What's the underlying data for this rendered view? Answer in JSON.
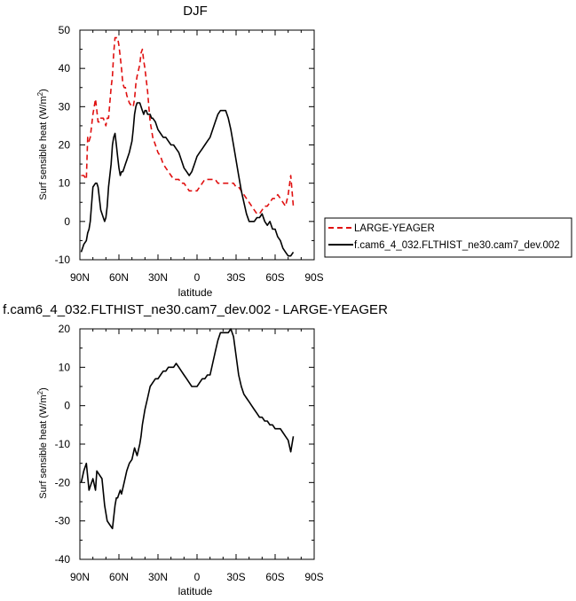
{
  "chart_data": [
    {
      "type": "line",
      "title": "DJF",
      "xlabel": "latitude",
      "ylabel": "Surf sensible heat (W/m",
      "ylabel_sup": "2",
      "ylabel_close": ")",
      "xlim": [
        90,
        -90
      ],
      "ylim": [
        -10,
        50
      ],
      "x_ticks": [
        90,
        60,
        30,
        0,
        -30,
        -60,
        -90
      ],
      "x_tick_labels": [
        "90N",
        "60N",
        "30N",
        "0",
        "30S",
        "60S",
        "90S"
      ],
      "y_ticks": [
        -10,
        0,
        10,
        20,
        30,
        40,
        50
      ],
      "y_tick_labels": [
        "-10",
        "0",
        "10",
        "20",
        "30",
        "40",
        "50"
      ],
      "grid": false,
      "legend_placement": "right",
      "series": [
        {
          "name": "LARGE-YEAGER",
          "color": "#e01010",
          "dash": "dashed",
          "x": [
            89,
            87,
            85,
            84,
            83,
            82,
            80,
            78,
            77,
            76,
            75,
            74,
            72,
            71,
            70,
            69,
            68,
            66,
            65,
            64,
            63,
            62,
            61,
            60,
            59,
            58,
            57,
            56,
            55,
            54,
            52,
            50,
            49,
            48,
            47,
            46,
            44,
            43,
            42,
            41,
            40,
            39,
            38,
            37,
            36,
            35,
            34,
            32,
            30,
            28,
            26,
            24,
            22,
            20,
            18,
            16,
            14,
            12,
            10,
            8,
            6,
            4,
            2,
            0,
            -2,
            -4,
            -6,
            -8,
            -10,
            -12,
            -14,
            -16,
            -18,
            -20,
            -22,
            -24,
            -26,
            -28,
            -30,
            -32,
            -34,
            -36,
            -38,
            -40,
            -42,
            -44,
            -46,
            -48,
            -50,
            -52,
            -54,
            -56,
            -58,
            -60,
            -62,
            -64,
            -66,
            -68,
            -70,
            -72,
            -74,
            -76,
            -78,
            -80
          ],
          "y": [
            12,
            12,
            11,
            22,
            21,
            22,
            28,
            32,
            29,
            26,
            26,
            27,
            27,
            26,
            25,
            27,
            27,
            35,
            38,
            44,
            48,
            48,
            48,
            46,
            43,
            40,
            36,
            35,
            35,
            33,
            31,
            30,
            30,
            32,
            36,
            38,
            41,
            44,
            45,
            42,
            40,
            37,
            34,
            30,
            26,
            24,
            22,
            20,
            18,
            17,
            15,
            14,
            13,
            12,
            11,
            11,
            11,
            10,
            10,
            9,
            8,
            8,
            8,
            8,
            9,
            10,
            11,
            11,
            11,
            11,
            11,
            10,
            10,
            10,
            10,
            10,
            10,
            10,
            9,
            9,
            8,
            7,
            6,
            5,
            4,
            3,
            2,
            2,
            3,
            4,
            4,
            5,
            6,
            6,
            7,
            6,
            5,
            4,
            7,
            12,
            4,
            null,
            null,
            null
          ]
        },
        {
          "name": "f.cam6_4_032.FLTHIST_ne30.cam7_dev.002",
          "color": "#000000",
          "dash": "solid",
          "x": [
            89,
            87,
            85,
            84,
            83,
            82,
            80,
            78,
            77,
            76,
            75,
            74,
            72,
            71,
            70,
            69,
            68,
            66,
            65,
            64,
            63,
            62,
            61,
            60,
            59,
            58,
            57,
            56,
            55,
            54,
            52,
            50,
            49,
            48,
            47,
            46,
            44,
            43,
            42,
            41,
            40,
            39,
            38,
            37,
            36,
            35,
            34,
            32,
            30,
            28,
            26,
            24,
            22,
            20,
            18,
            16,
            14,
            12,
            10,
            8,
            6,
            4,
            2,
            0,
            -2,
            -4,
            -6,
            -8,
            -10,
            -12,
            -14,
            -16,
            -18,
            -20,
            -22,
            -24,
            -26,
            -28,
            -30,
            -32,
            -34,
            -36,
            -38,
            -40,
            -42,
            -44,
            -46,
            -48,
            -50,
            -52,
            -54,
            -56,
            -58,
            -60,
            -62,
            -64,
            -66,
            -68,
            -70,
            -72,
            -74,
            -76,
            -78,
            -80
          ],
          "y": [
            -8,
            -6,
            -5,
            -3,
            -2,
            0,
            9,
            10,
            10,
            9,
            6,
            3,
            1,
            0,
            1,
            4,
            9,
            15,
            20,
            22,
            23,
            20,
            17,
            14,
            12,
            13,
            13,
            14,
            15,
            16,
            18,
            21,
            24,
            28,
            30,
            31,
            31,
            30,
            29,
            28,
            29,
            29,
            28,
            28,
            28,
            27,
            27,
            26,
            24,
            23,
            22,
            22,
            21,
            20,
            20,
            19,
            18,
            16,
            14,
            13,
            12,
            13,
            15,
            17,
            18,
            19,
            20,
            21,
            22,
            24,
            26,
            28,
            29,
            29,
            29,
            27,
            24,
            20,
            16,
            12,
            8,
            5,
            2,
            0,
            0,
            0,
            1,
            1,
            2,
            0,
            -1,
            0,
            -2,
            -2,
            -4,
            -5,
            -7,
            -8,
            -9,
            -9,
            -8,
            null,
            null,
            null
          ]
        }
      ]
    },
    {
      "type": "line",
      "title": "f.cam6_4_032.FLTHIST_ne30.cam7_dev.002 - LARGE-YEAGER",
      "xlabel": "latitude",
      "ylabel": "Surf sensible heat (W/m",
      "ylabel_sup": "2",
      "ylabel_close": ")",
      "xlim": [
        90,
        -90
      ],
      "ylim": [
        -40,
        20
      ],
      "x_ticks": [
        90,
        60,
        30,
        0,
        -30,
        -60,
        -90
      ],
      "x_tick_labels": [
        "90N",
        "60N",
        "30N",
        "0",
        "30S",
        "60S",
        "90S"
      ],
      "y_ticks": [
        -40,
        -30,
        -20,
        -10,
        0,
        10,
        20
      ],
      "y_tick_labels": [
        "-40",
        "-30",
        "-20",
        "-10",
        "0",
        "10",
        "20"
      ],
      "grid": false,
      "series": [
        {
          "name": "",
          "color": "#000000",
          "dash": "solid",
          "x": [
            89,
            87,
            85,
            83,
            82,
            80,
            78,
            77,
            75,
            73,
            71,
            69,
            67,
            65,
            63,
            62,
            61,
            60,
            59,
            58,
            56,
            54,
            52,
            50,
            48,
            46,
            44,
            43,
            42,
            40,
            38,
            36,
            34,
            32,
            30,
            28,
            26,
            24,
            22,
            20,
            18,
            16,
            14,
            12,
            10,
            8,
            6,
            4,
            2,
            0,
            -2,
            -4,
            -6,
            -8,
            -10,
            -12,
            -14,
            -16,
            -18,
            -20,
            -22,
            -24,
            -26,
            -28,
            -30,
            -32,
            -34,
            -36,
            -38,
            -40,
            -42,
            -44,
            -46,
            -48,
            -50,
            -52,
            -54,
            -56,
            -58,
            -60,
            -62,
            -64,
            -66,
            -68,
            -70,
            -72,
            -74,
            -76,
            -78,
            -80
          ],
          "y": [
            -20,
            -17,
            -15,
            -22,
            -21,
            -19,
            -22,
            -17,
            -18,
            -19,
            -26,
            -30,
            -31,
            -32,
            -26,
            -24,
            -24,
            -23,
            -22,
            -23,
            -20,
            -17,
            -15,
            -14,
            -11,
            -13,
            -10,
            -8,
            -5,
            -1,
            2,
            5,
            6,
            7,
            7,
            8,
            9,
            9,
            10,
            10,
            10,
            11,
            10,
            9,
            8,
            7,
            6,
            5,
            5,
            5,
            6,
            7,
            7,
            8,
            8,
            11,
            14,
            17,
            19,
            19,
            19,
            19,
            20,
            18,
            13,
            8,
            5,
            3,
            2,
            1,
            0,
            -1,
            -2,
            -3,
            -3,
            -4,
            -4,
            -5,
            -5,
            -6,
            -6,
            -6,
            -7,
            -8,
            -9,
            -12,
            -8,
            null,
            null,
            null
          ]
        }
      ]
    }
  ]
}
